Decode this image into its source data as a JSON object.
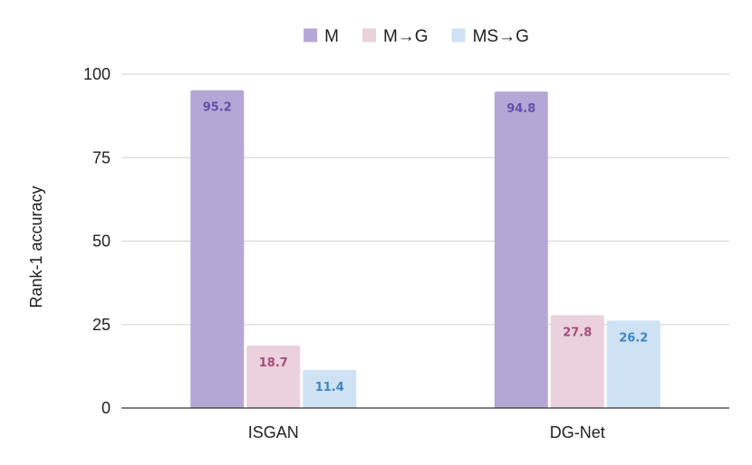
{
  "chart_data": {
    "type": "bar",
    "categories": [
      "ISGAN",
      "DG-Net"
    ],
    "series": [
      {
        "name": "M",
        "values": [
          95.2,
          94.8
        ],
        "color": "#b4a7d6",
        "label_color": "#674ea7"
      },
      {
        "name": "M→G",
        "values": [
          18.7,
          27.8
        ],
        "color": "#ead1dc",
        "label_color": "#a64d79"
      },
      {
        "name": "MS→G",
        "values": [
          11.4,
          26.2
        ],
        "color": "#cfe2f3",
        "label_color": "#3d85c6"
      }
    ],
    "data_labels": [
      [
        "95.2",
        "94.8"
      ],
      [
        "18.7",
        "27.8"
      ],
      [
        "11.4",
        "26.2"
      ]
    ],
    "ylabel": "Rank-1 accuracy",
    "ylim": [
      0,
      100
    ],
    "yticks": [
      0,
      25,
      50,
      75,
      100
    ],
    "grid": true,
    "legend_position": "top-center"
  }
}
